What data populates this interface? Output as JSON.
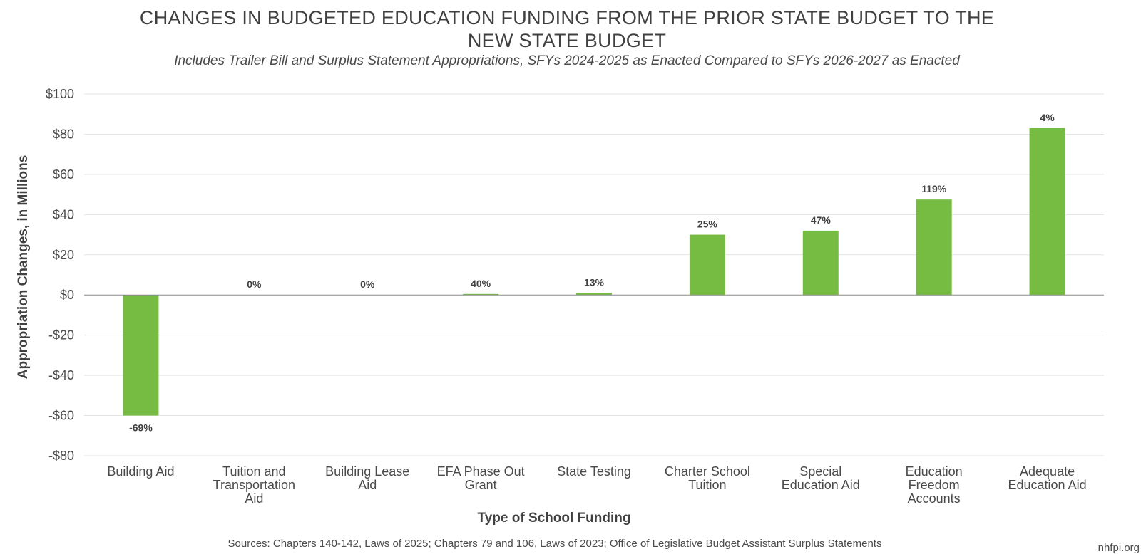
{
  "title_lines": [
    "CHANGES IN BUDGETED EDUCATION FUNDING FROM THE PRIOR STATE BUDGET TO THE",
    "NEW STATE BUDGET"
  ],
  "subtitle": "Includes Trailer Bill and Surplus Statement Appropriations, SFYs 2024-2025 as Enacted Compared to SFYs 2026-2027 as Enacted",
  "source": "Sources: Chapters 140-142, Laws of 2025; Chapters 79 and 106, Laws of 2023; Office of Legislative Budget Assistant Surplus Statements",
  "credit": "nhfpi.org",
  "colors": {
    "bar": "#76bc43",
    "grid": "#e3e3e3",
    "zero_line": "#8a8a8a",
    "text": "#404040"
  },
  "chart_data": {
    "type": "bar",
    "title": "CHANGES IN BUDGETED EDUCATION FUNDING FROM THE PRIOR STATE BUDGET TO THE NEW STATE BUDGET",
    "subtitle": "Includes Trailer Bill and Surplus Statement Appropriations, SFYs 2024-2025 as Enacted Compared to SFYs 2026-2027 as Enacted",
    "xlabel": "Type of School Funding",
    "ylabel": "Appropriation Changes, in Millions",
    "ylim": [
      -80,
      100
    ],
    "yticks": [
      100,
      80,
      60,
      40,
      20,
      0,
      -20,
      -40,
      -60,
      -80
    ],
    "ytick_labels": [
      "$100",
      "$80",
      "$60",
      "$40",
      "$20",
      "$0",
      "-$20",
      "-$40",
      "-$60",
      "-$80"
    ],
    "grid": true,
    "legend": "none",
    "categories": [
      "Building Aid",
      "Tuition and Transportation Aid",
      "Building Lease Aid",
      "EFA Phase Out Grant",
      "State Testing",
      "Charter School Tuition",
      "Special Education Aid",
      "Education Freedom Accounts",
      "Adequate Education Aid"
    ],
    "category_label_lines": [
      [
        "Building Aid"
      ],
      [
        "Tuition and",
        "Transportation",
        "Aid"
      ],
      [
        "Building Lease",
        "Aid"
      ],
      [
        "EFA Phase Out",
        "Grant"
      ],
      [
        "State Testing"
      ],
      [
        "Charter School",
        "Tuition"
      ],
      [
        "Special",
        "Education Aid"
      ],
      [
        "Education",
        "Freedom",
        "Accounts"
      ],
      [
        "Adequate",
        "Education Aid"
      ]
    ],
    "values": [
      -60,
      0,
      0,
      0.5,
      1,
      30,
      32,
      47.5,
      83
    ],
    "data_labels": [
      "-69%",
      "0%",
      "0%",
      "40%",
      "13%",
      "25%",
      "47%",
      "119%",
      "4%"
    ]
  }
}
